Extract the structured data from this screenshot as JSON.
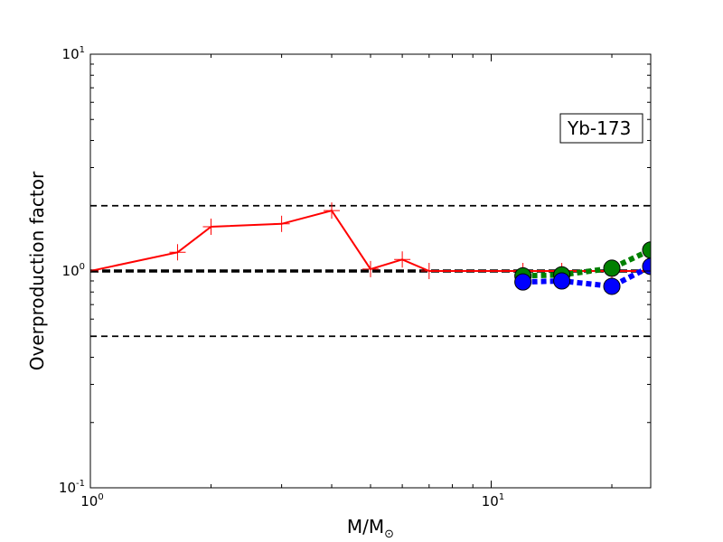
{
  "chart_data": {
    "type": "line",
    "title": "",
    "xlabel": "M/M",
    "xlabel_symbol": "⊙",
    "ylabel": "Overproduction factor",
    "xscale": "log",
    "yscale": "log",
    "xlim": [
      1,
      25
    ],
    "ylim": [
      0.1,
      10
    ],
    "x_ticks": [
      {
        "value": 1,
        "base": "10",
        "exp": "0"
      },
      {
        "value": 10,
        "base": "10",
        "exp": "1"
      }
    ],
    "y_ticks": [
      {
        "value": 0.1,
        "base": "10",
        "exp": "-1"
      },
      {
        "value": 1,
        "base": "10",
        "exp": "0"
      },
      {
        "value": 10,
        "base": "10",
        "exp": "1"
      }
    ],
    "grid": false,
    "annotation": {
      "text": "Yb-173",
      "position": "top-right",
      "box": true
    },
    "reference_lines": [
      {
        "y": 2.0,
        "style": "dashed",
        "color": "#000000"
      },
      {
        "y": 1.0,
        "style": "dashed-thick",
        "color": "#000000"
      },
      {
        "y": 0.5,
        "style": "dashed",
        "color": "#000000"
      }
    ],
    "series": [
      {
        "color": "#ff0000",
        "line": "solid",
        "marker": "plus",
        "x": [
          1,
          1.65,
          2,
          3,
          4,
          5,
          6,
          7,
          12,
          15,
          20,
          25
        ],
        "y": [
          1.0,
          1.22,
          1.6,
          1.65,
          1.9,
          1.02,
          1.13,
          1.0,
          1.0,
          1.0,
          1.0,
          1.0
        ]
      },
      {
        "color": "#008000",
        "line": "dotted",
        "marker": "circle",
        "x": [
          12,
          15,
          20,
          25
        ],
        "y": [
          0.95,
          0.96,
          1.03,
          1.25
        ]
      },
      {
        "color": "#0000ff",
        "line": "dotted",
        "marker": "circle",
        "x": [
          12,
          15,
          20,
          25
        ],
        "y": [
          0.89,
          0.9,
          0.85,
          1.05
        ]
      }
    ]
  }
}
